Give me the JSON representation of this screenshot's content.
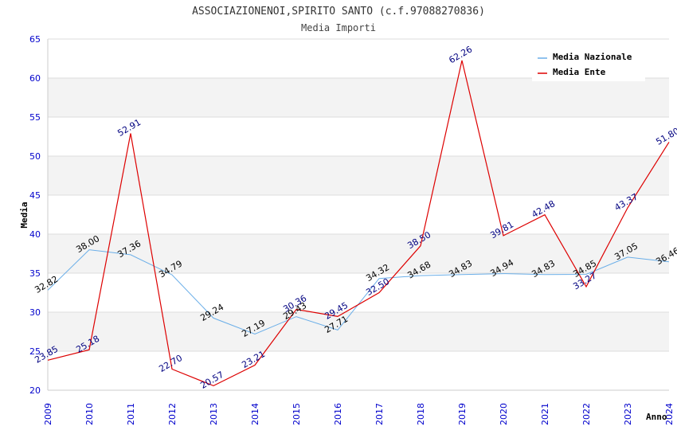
{
  "chart_data": {
    "type": "line",
    "title": "ASSOCIAZIONENOI,SPIRITO SANTO (c.f.97088270836)",
    "subtitle": "Media Importi",
    "xlabel": "Anno",
    "ylabel": "Media",
    "ylim": [
      20,
      65
    ],
    "yticks": [
      20,
      25,
      30,
      35,
      40,
      45,
      50,
      55,
      60,
      65
    ],
    "x": [
      "2009",
      "2010",
      "2011",
      "2012",
      "2013",
      "2014",
      "2015",
      "2016",
      "2017",
      "2018",
      "2019",
      "2020",
      "2021",
      "2022",
      "2023",
      "2024"
    ],
    "series": [
      {
        "name": "Media Nazionale",
        "color": "#6aaee8",
        "values": [
          32.82,
          38.0,
          37.36,
          34.79,
          29.24,
          27.19,
          29.43,
          27.71,
          34.32,
          34.68,
          34.83,
          34.94,
          34.83,
          34.85,
          37.05,
          36.46
        ],
        "labels": [
          "32.82",
          "38.00",
          "37.36",
          "34.79",
          "29.24",
          "27.19",
          "29.43",
          "27.71",
          "34.32",
          "34.68",
          "34.83",
          "34.94",
          "34.83",
          "34.85",
          "37.05",
          "36.46"
        ]
      },
      {
        "name": "Media Ente",
        "color": "#dd0000",
        "values": [
          23.85,
          25.18,
          52.91,
          22.7,
          20.57,
          23.21,
          30.36,
          29.45,
          32.5,
          38.5,
          62.26,
          39.81,
          42.48,
          33.27,
          43.37,
          51.8
        ],
        "labels": [
          "23.85",
          "25.18",
          "52.91",
          "22.70",
          "20.57",
          "23.21",
          "30.36",
          "29.45",
          "32.50",
          "38.50",
          "62.26",
          "39.81",
          "42.48",
          "33.27",
          "43.37",
          "51.80"
        ]
      }
    ],
    "legend": {
      "position": "top-right"
    }
  }
}
